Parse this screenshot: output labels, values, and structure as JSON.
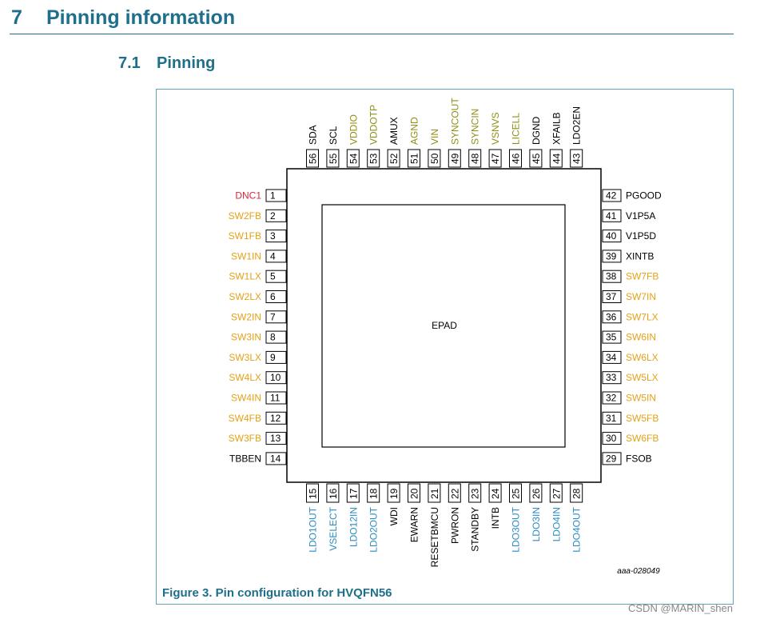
{
  "section": {
    "number": "7",
    "title": "Pinning information"
  },
  "subsection": {
    "number": "7.1",
    "title": "Pinning"
  },
  "figure": {
    "caption": "Figure 3.  Pin configuration for HVQFN56",
    "code": "aaa-028049",
    "epad_label": "EPAD"
  },
  "watermark": "CSDN @MARIN_shen",
  "colors": {
    "heading": "#1f6f8b",
    "black": "#000000",
    "red": "#d7263d",
    "orange": "#e6a117",
    "olive": "#8f8f16",
    "blue": "#2b8cc4"
  },
  "pins": {
    "left": [
      {
        "num": "1",
        "name": "DNC1",
        "color": "red"
      },
      {
        "num": "2",
        "name": "SW2FB",
        "color": "orange"
      },
      {
        "num": "3",
        "name": "SW1FB",
        "color": "orange"
      },
      {
        "num": "4",
        "name": "SW1IN",
        "color": "orange"
      },
      {
        "num": "5",
        "name": "SW1LX",
        "color": "orange"
      },
      {
        "num": "6",
        "name": "SW2LX",
        "color": "orange"
      },
      {
        "num": "7",
        "name": "SW2IN",
        "color": "orange"
      },
      {
        "num": "8",
        "name": "SW3IN",
        "color": "orange"
      },
      {
        "num": "9",
        "name": "SW3LX",
        "color": "orange"
      },
      {
        "num": "10",
        "name": "SW4LX",
        "color": "orange"
      },
      {
        "num": "11",
        "name": "SW4IN",
        "color": "orange"
      },
      {
        "num": "12",
        "name": "SW4FB",
        "color": "orange"
      },
      {
        "num": "13",
        "name": "SW3FB",
        "color": "orange"
      },
      {
        "num": "14",
        "name": "TBBEN",
        "color": "black"
      }
    ],
    "bottom": [
      {
        "num": "15",
        "name": "LDO1OUT",
        "color": "blue"
      },
      {
        "num": "16",
        "name": "VSELECT",
        "color": "blue"
      },
      {
        "num": "17",
        "name": "LDO12IN",
        "color": "blue"
      },
      {
        "num": "18",
        "name": "LDO2OUT",
        "color": "blue"
      },
      {
        "num": "19",
        "name": "WDI",
        "color": "black"
      },
      {
        "num": "20",
        "name": "EWARN",
        "color": "black"
      },
      {
        "num": "21",
        "name": "RESETBMCU",
        "color": "black"
      },
      {
        "num": "22",
        "name": "PWRON",
        "color": "black"
      },
      {
        "num": "23",
        "name": "STANDBY",
        "color": "black"
      },
      {
        "num": "24",
        "name": "INTB",
        "color": "black"
      },
      {
        "num": "25",
        "name": "LDO3OUT",
        "color": "blue"
      },
      {
        "num": "26",
        "name": "LDO3IN",
        "color": "blue"
      },
      {
        "num": "27",
        "name": "LDO4IN",
        "color": "blue"
      },
      {
        "num": "28",
        "name": "LDO4OUT",
        "color": "blue"
      }
    ],
    "right": [
      {
        "num": "42",
        "name": "PGOOD",
        "color": "black"
      },
      {
        "num": "41",
        "name": "V1P5A",
        "color": "black"
      },
      {
        "num": "40",
        "name": "V1P5D",
        "color": "black"
      },
      {
        "num": "39",
        "name": "XINTB",
        "color": "black"
      },
      {
        "num": "38",
        "name": "SW7FB",
        "color": "orange"
      },
      {
        "num": "37",
        "name": "SW7IN",
        "color": "orange"
      },
      {
        "num": "36",
        "name": "SW7LX",
        "color": "orange"
      },
      {
        "num": "35",
        "name": "SW6IN",
        "color": "orange"
      },
      {
        "num": "34",
        "name": "SW6LX",
        "color": "orange"
      },
      {
        "num": "33",
        "name": "SW5LX",
        "color": "orange"
      },
      {
        "num": "32",
        "name": "SW5IN",
        "color": "orange"
      },
      {
        "num": "31",
        "name": "SW5FB",
        "color": "orange"
      },
      {
        "num": "30",
        "name": "SW6FB",
        "color": "orange"
      },
      {
        "num": "29",
        "name": "FSOB",
        "color": "black"
      }
    ],
    "top": [
      {
        "num": "56",
        "name": "SDA",
        "color": "black"
      },
      {
        "num": "55",
        "name": "SCL",
        "color": "black"
      },
      {
        "num": "54",
        "name": "VDDIO",
        "color": "olive"
      },
      {
        "num": "53",
        "name": "VDDOTP",
        "color": "olive"
      },
      {
        "num": "52",
        "name": "AMUX",
        "color": "black"
      },
      {
        "num": "51",
        "name": "AGND",
        "color": "olive"
      },
      {
        "num": "50",
        "name": "VIN",
        "color": "olive"
      },
      {
        "num": "49",
        "name": "SYNCOUT",
        "color": "olive"
      },
      {
        "num": "48",
        "name": "SYNCIN",
        "color": "olive"
      },
      {
        "num": "47",
        "name": "VSNVS",
        "color": "olive"
      },
      {
        "num": "46",
        "name": "LICELL",
        "color": "olive"
      },
      {
        "num": "45",
        "name": "DGND",
        "color": "black"
      },
      {
        "num": "44",
        "name": "XFAILB",
        "color": "black"
      },
      {
        "num": "43",
        "name": "LDO2EN",
        "color": "black"
      }
    ]
  }
}
